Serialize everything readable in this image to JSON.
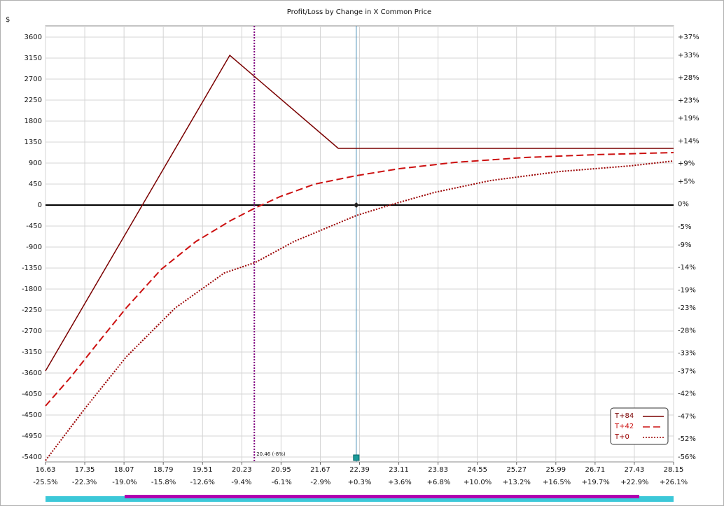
{
  "chart_data": {
    "type": "line",
    "title": "Profit/Loss by Change in X Common Price",
    "y_unit_label": "$",
    "xlim": [
      16.63,
      28.15
    ],
    "xticks": [
      16.63,
      17.35,
      18.07,
      18.79,
      19.51,
      20.23,
      20.95,
      21.67,
      22.39,
      23.11,
      23.83,
      24.55,
      25.27,
      25.99,
      26.71,
      27.43,
      28.15
    ],
    "x2lim": [
      -25.5,
      26.1
    ],
    "x2ticks": [
      {
        "value": -25.5,
        "label": "-25.5%"
      },
      {
        "value": -22.3,
        "label": "-22.3%"
      },
      {
        "value": -19.0,
        "label": "-19.0%"
      },
      {
        "value": -15.8,
        "label": "-15.8%"
      },
      {
        "value": -12.6,
        "label": "-12.6%"
      },
      {
        "value": -9.4,
        "label": "-9.4%"
      },
      {
        "value": -6.1,
        "label": "-6.1%"
      },
      {
        "value": -2.9,
        "label": "-2.9%"
      },
      {
        "value": 0.3,
        "label": "+0.3%"
      },
      {
        "value": 3.6,
        "label": "+3.6%"
      },
      {
        "value": 6.8,
        "label": "+6.8%"
      },
      {
        "value": 10.0,
        "label": "+10.0%"
      },
      {
        "value": 13.2,
        "label": "+13.2%"
      },
      {
        "value": 16.5,
        "label": "+16.5%"
      },
      {
        "value": 19.7,
        "label": "+19.7%"
      },
      {
        "value": 22.9,
        "label": "+22.9%"
      },
      {
        "value": 26.1,
        "label": "+26.1%"
      }
    ],
    "ylim": [
      -5505,
      3840
    ],
    "yticks": [
      3600,
      3150,
      2700,
      2250,
      1800,
      1350,
      900,
      450,
      0,
      -450,
      -900,
      -1350,
      -1800,
      -2250,
      -2700,
      -3150,
      -3600,
      -4050,
      -4500,
      -4950,
      -5400
    ],
    "y2lim": [
      -57.1,
      39.5
    ],
    "y2ticks": [
      {
        "value": 37,
        "label": "+37%"
      },
      {
        "value": 33,
        "label": "+33%"
      },
      {
        "value": 28,
        "label": "+28%"
      },
      {
        "value": 23,
        "label": "+23%"
      },
      {
        "value": 19,
        "label": "+19%"
      },
      {
        "value": 14,
        "label": "+14%"
      },
      {
        "value": 9,
        "label": "+9%"
      },
      {
        "value": 5,
        "label": "+5%"
      },
      {
        "value": 0,
        "label": "0%"
      },
      {
        "value": -5,
        "label": "-5%"
      },
      {
        "value": -9,
        "label": "-9%"
      },
      {
        "value": -14,
        "label": "-14%"
      },
      {
        "value": -19,
        "label": "-19%"
      },
      {
        "value": -23,
        "label": "-23%"
      },
      {
        "value": -28,
        "label": "-28%"
      },
      {
        "value": -33,
        "label": "-33%"
      },
      {
        "value": -37,
        "label": "-37%"
      },
      {
        "value": -42,
        "label": "-42%"
      },
      {
        "value": -47,
        "label": "-47%"
      },
      {
        "value": -52,
        "label": "-52%"
      },
      {
        "value": -56,
        "label": "-56%"
      }
    ],
    "grid": true,
    "marker_line": {
      "value": 20.46,
      "label": "20.46 (-8%)",
      "color": "#800080"
    },
    "current_price": {
      "value": 22.33,
      "color": "#4a90b8"
    },
    "legend": "lower right",
    "series": [
      {
        "name": "T+84",
        "color": "#7a0000",
        "dash": "solid",
        "x": [
          16.63,
          20.01,
          22.0,
          28.15
        ],
        "values": [
          -3555,
          3210,
          1215,
          1215
        ]
      },
      {
        "name": "T+42",
        "color": "#cc1010",
        "dash": "dashed",
        "x": [
          16.63,
          17.08,
          17.59,
          18.11,
          18.75,
          19.39,
          20.03,
          20.48,
          20.93,
          21.57,
          22.33,
          23.12,
          24.14,
          25.43,
          26.71,
          28.15
        ],
        "values": [
          -4305,
          -3705,
          -2955,
          -2205,
          -1380,
          -780,
          -330,
          -60,
          180,
          450,
          630,
          780,
          915,
          1020,
          1080,
          1125
        ]
      },
      {
        "name": "T+0",
        "color": "#9a0000",
        "dash": "dotted",
        "x": [
          16.63,
          17.34,
          18.11,
          19.01,
          19.91,
          20.48,
          21.19,
          22.33,
          22.99,
          23.76,
          24.79,
          26.07,
          27.35,
          28.15
        ],
        "values": [
          -5475,
          -4380,
          -3255,
          -2205,
          -1455,
          -1230,
          -780,
          -225,
          15,
          270,
          525,
          720,
          840,
          945
        ]
      }
    ]
  }
}
